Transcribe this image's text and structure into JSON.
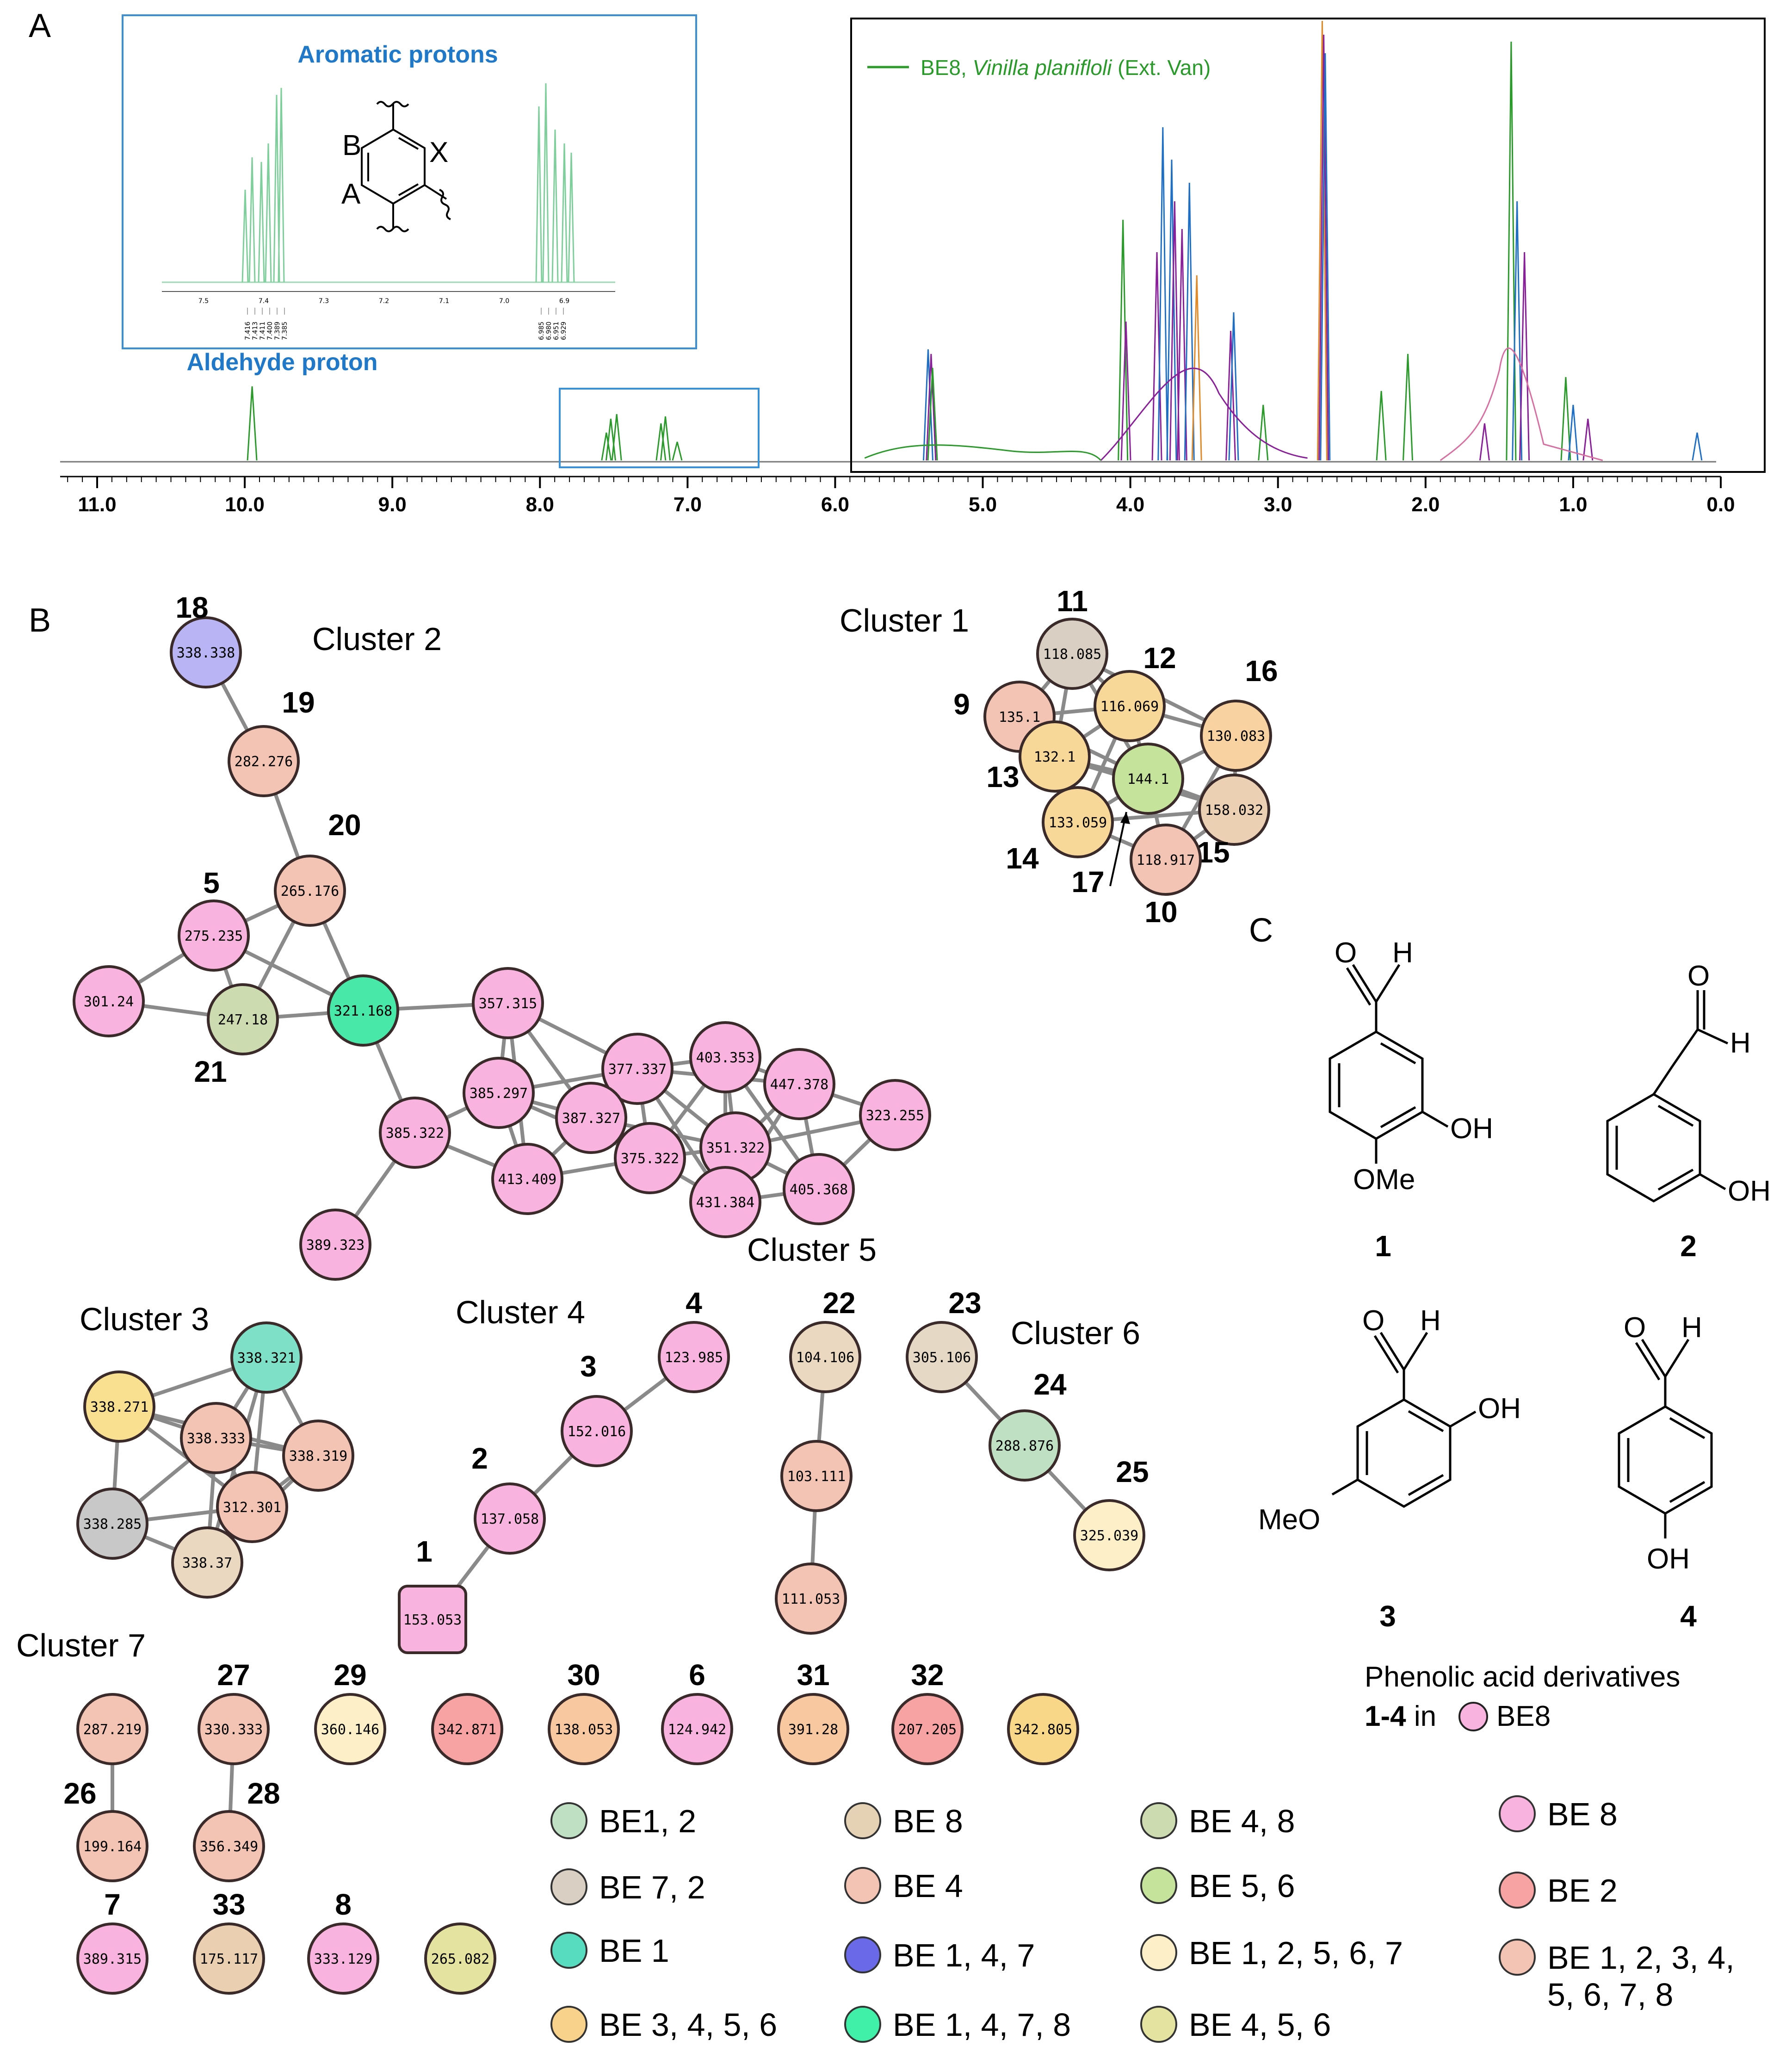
{
  "panels": {
    "a": "A",
    "b": "B",
    "c": "C"
  },
  "spectrum": {
    "legend_label": "BE8, ",
    "legend_species": "Vinilla planifloli",
    "legend_note": " (Ext. Van)",
    "inset_title": "Aromatic protons",
    "aldehyde_label": "Aldehyde proton",
    "inset_ring_labels": [
      "B",
      "X",
      "A"
    ],
    "inset_axis_ticks": [
      "7.5",
      "7.4",
      "7.3",
      "7.2",
      "7.1",
      "7.0",
      "6.9"
    ],
    "inset_peak_labels_left": [
      "7.416",
      "7.413",
      "7.411",
      "7.400",
      "7.389",
      "7.385"
    ],
    "inset_peak_labels_right": [
      "6.985",
      "6.980",
      "6.951",
      "6.929"
    ],
    "x_ticks": [
      "11.0",
      "10.0",
      "9.0",
      "8.0",
      "7.0",
      "6.0",
      "5.0",
      "4.0",
      "3.0",
      "2.0",
      "1.0",
      "0.0"
    ],
    "colors": {
      "green": "#2a9a2a",
      "blue": "#1f6fc5",
      "purple": "#8a1f9a",
      "orange": "#e08a2a",
      "pink": "#d76fa0"
    }
  },
  "network": {
    "cluster_labels": [
      "Cluster 1",
      "Cluster 2",
      "Cluster 3",
      "Cluster 4",
      "Cluster 5",
      "Cluster 6",
      "Cluster 7"
    ],
    "nodes": [
      {
        "id": "n18",
        "val": "338.338",
        "num": "18",
        "color": "#b9b5f5"
      },
      {
        "id": "n19",
        "val": "282.276",
        "num": "19",
        "color": "#f3c3b3"
      },
      {
        "id": "n20",
        "val": "265.176",
        "num": "20",
        "color": "#f3c3b3"
      },
      {
        "id": "n5",
        "val": "275.235",
        "num": "5",
        "color": "#f9b3df"
      },
      {
        "id": "n301",
        "val": "301.24",
        "num": "",
        "color": "#f9b3df"
      },
      {
        "id": "n21",
        "val": "247.18",
        "num": "21",
        "color": "#cddbb1"
      },
      {
        "id": "n321",
        "val": "321.168",
        "num": "",
        "color": "#48e8a8"
      },
      {
        "id": "n357",
        "val": "357.315",
        "num": "",
        "color": "#f9b3df"
      },
      {
        "id": "n385a",
        "val": "385.297",
        "num": "",
        "color": "#f9b3df"
      },
      {
        "id": "n377",
        "val": "377.337",
        "num": "",
        "color": "#f9b3df"
      },
      {
        "id": "n403",
        "val": "403.353",
        "num": "",
        "color": "#f9b3df"
      },
      {
        "id": "n447",
        "val": "447.378",
        "num": "",
        "color": "#f9b3df"
      },
      {
        "id": "n323",
        "val": "323.255",
        "num": "",
        "color": "#f9b3df"
      },
      {
        "id": "n387",
        "val": "387.327",
        "num": "",
        "color": "#f9b3df"
      },
      {
        "id": "n385b",
        "val": "385.322",
        "num": "",
        "color": "#f9b3df"
      },
      {
        "id": "n413",
        "val": "413.409",
        "num": "",
        "color": "#f9b3df"
      },
      {
        "id": "n375",
        "val": "375.322",
        "num": "",
        "color": "#f9b3df"
      },
      {
        "id": "n351",
        "val": "351.322",
        "num": "",
        "color": "#f9b3df"
      },
      {
        "id": "n405",
        "val": "405.368",
        "num": "",
        "color": "#f9b3df"
      },
      {
        "id": "n431",
        "val": "431.384",
        "num": "",
        "color": "#f9b3df"
      },
      {
        "id": "n389",
        "val": "389.323",
        "num": "",
        "color": "#f9b3df"
      },
      {
        "id": "n11",
        "val": "118.085",
        "num": "11",
        "color": "#d9d0c3"
      },
      {
        "id": "n12",
        "val": "116.069",
        "num": "12",
        "color": "#f8d898"
      },
      {
        "id": "n9",
        "val": "135.1",
        "num": "9",
        "color": "#f3c3b3"
      },
      {
        "id": "n16",
        "val": "130.083",
        "num": "16",
        "color": "#f8d2a0"
      },
      {
        "id": "n13",
        "val": "132.1",
        "num": "13",
        "color": "#f8d898"
      },
      {
        "id": "n17",
        "val": "144.1",
        "num": "17",
        "color": "#c5e39a"
      },
      {
        "id": "n14",
        "val": "133.059",
        "num": "14",
        "color": "#f8d898"
      },
      {
        "id": "n15",
        "val": "158.032",
        "num": "15",
        "color": "#ecd0b3"
      },
      {
        "id": "n10",
        "val": "118.917",
        "num": "10",
        "color": "#f3c3b3"
      },
      {
        "id": "c3a",
        "val": "338.321",
        "num": "",
        "color": "#7fe0c8"
      },
      {
        "id": "c3b",
        "val": "338.271",
        "num": "",
        "color": "#f8e090"
      },
      {
        "id": "c3c",
        "val": "338.333",
        "num": "",
        "color": "#f3c3b3"
      },
      {
        "id": "c3d",
        "val": "338.319",
        "num": "",
        "color": "#f3c3b3"
      },
      {
        "id": "c3e",
        "val": "312.301",
        "num": "",
        "color": "#f3c3b3"
      },
      {
        "id": "c3f",
        "val": "338.285",
        "num": "",
        "color": "#c8c8c8"
      },
      {
        "id": "c3g",
        "val": "338.37",
        "num": "",
        "color": "#ead8c0"
      },
      {
        "id": "n4",
        "val": "123.985",
        "num": "4",
        "color": "#f9b3df"
      },
      {
        "id": "n3",
        "val": "152.016",
        "num": "3",
        "color": "#f9b3df"
      },
      {
        "id": "n2",
        "val": "137.058",
        "num": "2",
        "color": "#f9b3df"
      },
      {
        "id": "n1",
        "val": "153.053",
        "num": "1",
        "color": "#f9b3df"
      },
      {
        "id": "n22",
        "val": "104.106",
        "num": "22",
        "color": "#ead8c0"
      },
      {
        "id": "c5b",
        "val": "103.111",
        "num": "",
        "color": "#f3c3b3"
      },
      {
        "id": "c5c",
        "val": "111.053",
        "num": "",
        "color": "#f3c3b3"
      },
      {
        "id": "n23",
        "val": "305.106",
        "num": "23",
        "color": "#e5d8c5"
      },
      {
        "id": "n24",
        "val": "288.876",
        "num": "24",
        "color": "#bfe0c3"
      },
      {
        "id": "n25",
        "val": "325.039",
        "num": "25",
        "color": "#fdf0c8"
      },
      {
        "id": "c7a",
        "val": "287.219",
        "num": "",
        "color": "#f3c3b3"
      },
      {
        "id": "n27",
        "val": "330.333",
        "num": "27",
        "color": "#f3c3b3"
      },
      {
        "id": "n29",
        "val": "360.146",
        "num": "29",
        "color": "#fdf0c8"
      },
      {
        "id": "c7d",
        "val": "342.871",
        "num": "",
        "color": "#f7a3a3"
      },
      {
        "id": "n30",
        "val": "138.053",
        "num": "30",
        "color": "#f8c8a0"
      },
      {
        "id": "n6",
        "val": "124.942",
        "num": "6",
        "color": "#f9b3df"
      },
      {
        "id": "n31",
        "val": "391.28",
        "num": "31",
        "color": "#f8c8a0"
      },
      {
        "id": "n32",
        "val": "207.205",
        "num": "32",
        "color": "#f7a3a3"
      },
      {
        "id": "c7i",
        "val": "342.805",
        "num": "",
        "color": "#f8d888"
      },
      {
        "id": "n26",
        "val": "199.164",
        "num": "26",
        "color": "#f3c3b3"
      },
      {
        "id": "n28",
        "val": "356.349",
        "num": "28",
        "color": "#f3c3b3"
      },
      {
        "id": "n7",
        "val": "389.315",
        "num": "7",
        "color": "#f9b3df"
      },
      {
        "id": "n33",
        "val": "175.117",
        "num": "33",
        "color": "#ead0b0"
      },
      {
        "id": "n8",
        "val": "333.129",
        "num": "8",
        "color": "#f9b3df"
      },
      {
        "id": "c7j",
        "val": "265.082",
        "num": "",
        "color": "#e5e3a0"
      }
    ],
    "edges": [
      [
        "n18",
        "n19"
      ],
      [
        "n19",
        "n20"
      ],
      [
        "n20",
        "n5"
      ],
      [
        "n20",
        "n21"
      ],
      [
        "n20",
        "n321"
      ],
      [
        "n5",
        "n301"
      ],
      [
        "n5",
        "n21"
      ],
      [
        "n5",
        "n321"
      ],
      [
        "n301",
        "n21"
      ],
      [
        "n21",
        "n321"
      ],
      [
        "n321",
        "n357"
      ],
      [
        "n321",
        "n385b"
      ],
      [
        "n357",
        "n385a"
      ],
      [
        "n357",
        "n377"
      ],
      [
        "n357",
        "n387"
      ],
      [
        "n357",
        "n413"
      ],
      [
        "n385a",
        "n377"
      ],
      [
        "n385a",
        "n387"
      ],
      [
        "n385a",
        "n413"
      ],
      [
        "n385a",
        "n385b"
      ],
      [
        "n385a",
        "n375"
      ],
      [
        "n377",
        "n403"
      ],
      [
        "n377",
        "n387"
      ],
      [
        "n377",
        "n375"
      ],
      [
        "n377",
        "n351"
      ],
      [
        "n377",
        "n431"
      ],
      [
        "n377",
        "n447"
      ],
      [
        "n403",
        "n447"
      ],
      [
        "n403",
        "n351"
      ],
      [
        "n403",
        "n405"
      ],
      [
        "n403",
        "n375"
      ],
      [
        "n403",
        "n431"
      ],
      [
        "n447",
        "n323"
      ],
      [
        "n447",
        "n351"
      ],
      [
        "n447",
        "n405"
      ],
      [
        "n447",
        "n431"
      ],
      [
        "n323",
        "n351"
      ],
      [
        "n323",
        "n405"
      ],
      [
        "n387",
        "n413"
      ],
      [
        "n387",
        "n375"
      ],
      [
        "n387",
        "n351"
      ],
      [
        "n385b",
        "n413"
      ],
      [
        "n385b",
        "n389"
      ],
      [
        "n413",
        "n375"
      ],
      [
        "n375",
        "n351"
      ],
      [
        "n375",
        "n431"
      ],
      [
        "n351",
        "n405"
      ],
      [
        "n351",
        "n431"
      ],
      [
        "n405",
        "n431"
      ],
      [
        "n11",
        "n9"
      ],
      [
        "n11",
        "n12"
      ],
      [
        "n11",
        "n13"
      ],
      [
        "n11",
        "n17"
      ],
      [
        "n11",
        "n16"
      ],
      [
        "n12",
        "n9"
      ],
      [
        "n12",
        "n13"
      ],
      [
        "n12",
        "n17"
      ],
      [
        "n12",
        "n16"
      ],
      [
        "n12",
        "n14"
      ],
      [
        "n9",
        "n13"
      ],
      [
        "n9",
        "n17"
      ],
      [
        "n9",
        "n14"
      ],
      [
        "n16",
        "n17"
      ],
      [
        "n16",
        "n15"
      ],
      [
        "n16",
        "n10"
      ],
      [
        "n13",
        "n17"
      ],
      [
        "n13",
        "n14"
      ],
      [
        "n13",
        "n15"
      ],
      [
        "n17",
        "n14"
      ],
      [
        "n17",
        "n15"
      ],
      [
        "n17",
        "n10"
      ],
      [
        "n14",
        "n10"
      ],
      [
        "n14",
        "n15"
      ],
      [
        "n15",
        "n10"
      ],
      [
        "c3a",
        "c3b"
      ],
      [
        "c3a",
        "c3c"
      ],
      [
        "c3a",
        "c3d"
      ],
      [
        "c3a",
        "c3e"
      ],
      [
        "c3a",
        "c3g"
      ],
      [
        "c3b",
        "c3c"
      ],
      [
        "c3b",
        "c3f"
      ],
      [
        "c3b",
        "c3d"
      ],
      [
        "c3b",
        "c3e"
      ],
      [
        "c3c",
        "c3d"
      ],
      [
        "c3c",
        "c3e"
      ],
      [
        "c3c",
        "c3f"
      ],
      [
        "c3c",
        "c3g"
      ],
      [
        "c3d",
        "c3e"
      ],
      [
        "c3d",
        "c3g"
      ],
      [
        "c3f",
        "c3g"
      ],
      [
        "c3f",
        "c3e"
      ],
      [
        "c3e",
        "c3g"
      ],
      [
        "n4",
        "n3"
      ],
      [
        "n3",
        "n2"
      ],
      [
        "n2",
        "n1"
      ],
      [
        "n22",
        "c5b"
      ],
      [
        "c5b",
        "c5c"
      ],
      [
        "n23",
        "n24"
      ],
      [
        "n24",
        "n25"
      ],
      [
        "c7a",
        "n26"
      ],
      [
        "n27",
        "n28"
      ]
    ],
    "legend": [
      {
        "label": "BE1, 2",
        "color": "#bfe0c3"
      },
      {
        "label": "BE 7, 2",
        "color": "#d9d0c3"
      },
      {
        "label": "BE 1",
        "color": "#58dcc0"
      },
      {
        "label": "BE 3, 4, 5, 6",
        "color": "#f8d28a"
      },
      {
        "label": "BE 8",
        "color": "#e5d2b5"
      },
      {
        "label": "BE 4",
        "color": "#f3c3b3"
      },
      {
        "label": "BE 1, 4, 7",
        "color": "#6a6ae8"
      },
      {
        "label": "BE 1, 4, 7, 8",
        "color": "#40f0a8"
      },
      {
        "label": "BE 4, 8",
        "color": "#cddbb1"
      },
      {
        "label": "BE 5, 6",
        "color": "#c5e39a"
      },
      {
        "label": "BE 1, 2, 5, 6, 7",
        "color": "#fdf0c8"
      },
      {
        "label": "BE 4, 5, 6",
        "color": "#e5e3a0"
      },
      {
        "label": "BE 8",
        "color": "#f9b3df"
      },
      {
        "label": "BE 2",
        "color": "#f7a3a3"
      },
      {
        "label": "BE 1, 2, 3, 4,",
        "label2": "5, 6,  7, 8",
        "color": "#f3c3b3"
      }
    ]
  },
  "structures": {
    "compound_numbers": [
      "1",
      "2",
      "3",
      "4"
    ],
    "labels": {
      "O": "O",
      "H": "H",
      "OH": "OH",
      "OMe": "OMe",
      "MeO": "MeO"
    },
    "caption_line1": "Phenolic acid derivatives",
    "caption_bold": "1-4",
    "caption_in": " in ",
    "caption_be": "BE8"
  }
}
